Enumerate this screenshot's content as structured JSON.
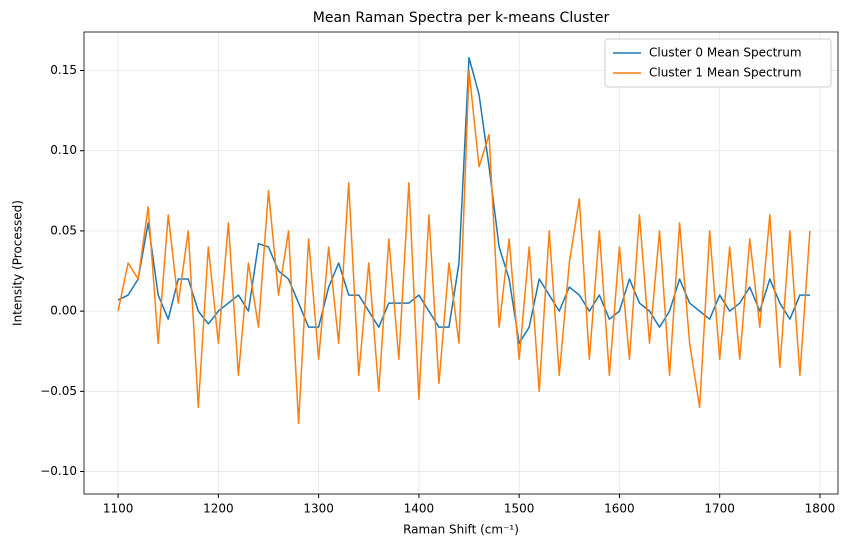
{
  "chart_data": {
    "type": "line",
    "title": "Mean Raman Spectra per k-means Cluster",
    "xlabel": "Raman Shift (cm⁻¹)",
    "ylabel": "Intensity (Processed)",
    "x": [
      1100,
      1110,
      1120,
      1130,
      1140,
      1150,
      1160,
      1170,
      1180,
      1190,
      1200,
      1210,
      1220,
      1230,
      1240,
      1250,
      1260,
      1270,
      1280,
      1290,
      1300,
      1310,
      1320,
      1330,
      1340,
      1350,
      1360,
      1370,
      1380,
      1390,
      1400,
      1410,
      1420,
      1430,
      1440,
      1450,
      1460,
      1470,
      1480,
      1490,
      1500,
      1510,
      1520,
      1530,
      1540,
      1550,
      1560,
      1570,
      1580,
      1590,
      1600,
      1610,
      1620,
      1630,
      1640,
      1650,
      1660,
      1670,
      1680,
      1690,
      1700,
      1710,
      1720,
      1730,
      1740,
      1750,
      1760,
      1770,
      1780,
      1790
    ],
    "series": [
      {
        "name": "Cluster 0 Mean Spectrum",
        "color": "#1f77b4",
        "values": [
          0.007,
          0.01,
          0.02,
          0.055,
          0.01,
          -0.005,
          0.02,
          0.02,
          0.0,
          -0.008,
          0.0,
          0.005,
          0.01,
          0.0,
          0.042,
          0.04,
          0.025,
          0.02,
          0.005,
          -0.01,
          -0.01,
          0.015,
          0.03,
          0.01,
          0.01,
          0.0,
          -0.01,
          0.005,
          0.005,
          0.005,
          0.01,
          0.0,
          -0.01,
          -0.01,
          0.03,
          0.158,
          0.135,
          0.09,
          0.04,
          0.02,
          -0.02,
          -0.01,
          0.02,
          0.01,
          0.0,
          0.015,
          0.01,
          0.0,
          0.01,
          -0.005,
          0.0,
          0.02,
          0.005,
          0.0,
          -0.01,
          0.0,
          0.02,
          0.005,
          0.0,
          -0.005,
          0.01,
          0.0,
          0.005,
          0.015,
          0.0,
          0.02,
          0.005,
          -0.005,
          0.01,
          0.01
        ]
      },
      {
        "name": "Cluster 1 Mean Spectrum",
        "color": "#ff7f0e",
        "values": [
          0.0,
          0.03,
          0.02,
          0.065,
          -0.02,
          0.06,
          0.005,
          0.05,
          -0.06,
          0.04,
          -0.02,
          0.055,
          -0.04,
          0.03,
          -0.01,
          0.075,
          0.01,
          0.05,
          -0.07,
          0.045,
          -0.03,
          0.04,
          -0.02,
          0.08,
          -0.04,
          0.03,
          -0.05,
          0.045,
          -0.03,
          0.08,
          -0.055,
          0.06,
          -0.045,
          0.03,
          -0.02,
          0.15,
          0.09,
          0.11,
          -0.01,
          0.045,
          -0.03,
          0.04,
          -0.05,
          0.05,
          -0.04,
          0.03,
          0.07,
          -0.03,
          0.05,
          -0.04,
          0.04,
          -0.03,
          0.06,
          -0.02,
          0.05,
          -0.04,
          0.055,
          -0.02,
          -0.06,
          0.05,
          -0.03,
          0.04,
          -0.03,
          0.045,
          -0.01,
          0.06,
          -0.035,
          0.05,
          -0.04,
          0.05
        ]
      }
    ],
    "xlim": [
      1066,
      1818
    ],
    "ylim": [
      -0.114,
      0.174
    ],
    "xticks": [
      1100,
      1200,
      1300,
      1400,
      1500,
      1600,
      1700,
      1800
    ],
    "yticks": [
      {
        "value": -0.1,
        "label": "−0.10"
      },
      {
        "value": -0.05,
        "label": "−0.05"
      },
      {
        "value": 0,
        "label": "0.00"
      },
      {
        "value": 0.05,
        "label": "0.05"
      },
      {
        "value": 0.1,
        "label": "0.10"
      },
      {
        "value": 0.15,
        "label": "0.15"
      }
    ],
    "grid": true,
    "legend": "upper right"
  }
}
